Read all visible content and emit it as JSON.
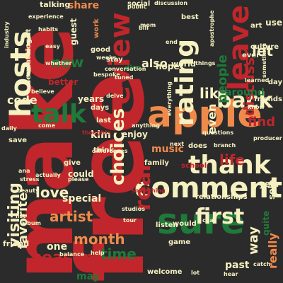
{
  "palette": {
    "background": "#2b2b2b",
    "red": "#c0262b",
    "orange": "#f08a4b",
    "cream": "#f6f1c1",
    "green": "#1f7a3a",
    "light_green": "#a8d99b",
    "salmon": "#e8604c"
  },
  "words": [
    {
      "text": "make",
      "color": "red"
    },
    {
      "text": "free",
      "color": "red"
    },
    {
      "text": "apple",
      "color": "orange"
    },
    {
      "text": "sure",
      "color": "green"
    },
    {
      "text": "comment",
      "color": "cream"
    },
    {
      "text": "thank",
      "color": "cream"
    },
    {
      "text": "hosts",
      "color": "cream"
    },
    {
      "text": "review",
      "color": "red"
    },
    {
      "text": "leave",
      "color": "red"
    },
    {
      "text": "rating",
      "color": "cream"
    },
    {
      "text": "talk",
      "color": "green"
    },
    {
      "text": "back",
      "color": "cream"
    },
    {
      "text": "first",
      "color": "cream"
    },
    {
      "text": "real",
      "color": "red"
    },
    {
      "text": "choices",
      "color": "cream"
    },
    {
      "text": "visiting",
      "color": "cream"
    },
    {
      "text": "month",
      "color": "orange"
    },
    {
      "text": "time",
      "color": "green"
    },
    {
      "text": "season",
      "color": "red"
    },
    {
      "text": "love",
      "color": "cream"
    },
    {
      "text": "like",
      "color": "cream"
    },
    {
      "text": "new",
      "color": "green"
    },
    {
      "text": "code",
      "color": "cream"
    },
    {
      "text": "artist",
      "color": "orange"
    },
    {
      "text": "favorite",
      "color": "cream"
    },
    {
      "text": "life",
      "color": "red"
    },
    {
      "text": "people",
      "color": "green"
    },
    {
      "text": "discuss",
      "color": "red"
    },
    {
      "text": "find",
      "color": "red"
    },
    {
      "text": "let",
      "color": "cream"
    },
    {
      "text": "way",
      "color": "cream"
    },
    {
      "text": "even",
      "color": "cream"
    },
    {
      "text": "also",
      "color": "cream"
    },
    {
      "text": "special",
      "color": "cream"
    },
    {
      "text": "really",
      "color": "orange"
    },
    {
      "text": "may",
      "color": "green"
    },
    {
      "text": "music",
      "color": "orange"
    },
    {
      "text": "share",
      "color": "orange"
    },
    {
      "text": "guest",
      "color": "cream"
    },
    {
      "text": "years",
      "color": "cream"
    },
    {
      "text": "kim",
      "color": "cream"
    },
    {
      "text": "enjoy",
      "color": "cream"
    },
    {
      "text": "hope",
      "color": "cream"
    },
    {
      "text": "talking",
      "color": "cream"
    },
    {
      "text": "social",
      "color": "cream"
    },
    {
      "text": "work",
      "color": "orange"
    },
    {
      "text": "one",
      "color": "cream"
    },
    {
      "text": "could",
      "color": "cream"
    },
    {
      "text": "give",
      "color": "cream"
    },
    {
      "text": "world",
      "color": "cream"
    },
    {
      "text": "family",
      "color": "cream"
    },
    {
      "text": "school",
      "color": "red"
    },
    {
      "text": "year",
      "color": "cream"
    },
    {
      "text": "solo",
      "color": "cream"
    },
    {
      "text": "friend",
      "color": "cream"
    },
    {
      "text": "welcome",
      "color": "cream"
    },
    {
      "text": "past",
      "color": "cream"
    },
    {
      "text": "quite",
      "color": "green"
    },
    {
      "text": "game",
      "color": "cream"
    },
    {
      "text": "would",
      "color": "cream"
    },
    {
      "text": "listen",
      "color": "cream"
    },
    {
      "text": "relationships",
      "color": "cream"
    },
    {
      "text": "around",
      "color": "green"
    },
    {
      "text": "friends",
      "color": "cream"
    },
    {
      "text": "culture",
      "color": "cream"
    },
    {
      "text": "ever",
      "color": "cream"
    },
    {
      "text": "day",
      "color": "cream"
    },
    {
      "text": "best",
      "color": "cream"
    },
    {
      "text": "apostrophe",
      "color": "cream"
    },
    {
      "text": "use",
      "color": "cream"
    },
    {
      "text": "art",
      "color": "cream"
    },
    {
      "text": "dermatologist",
      "color": "cream"
    },
    {
      "text": "industry",
      "color": "cream"
    },
    {
      "text": "dive",
      "color": "green"
    },
    {
      "text": "stay",
      "color": "cream"
    },
    {
      "text": "good",
      "color": "cream"
    },
    {
      "text": "better",
      "color": "red"
    },
    {
      "text": "whether",
      "color": "cream"
    },
    {
      "text": "days",
      "color": "cream"
    },
    {
      "text": "last",
      "color": "cream"
    },
    {
      "text": "come",
      "color": "cream"
    },
    {
      "text": "save",
      "color": "cream"
    },
    {
      "text": "things",
      "color": "cream"
    },
    {
      "text": "everything",
      "color": "cream"
    },
    {
      "text": "conversation",
      "color": "cream"
    },
    {
      "text": "experience",
      "color": "cream"
    },
    {
      "text": "habits",
      "color": "cream"
    },
    {
      "text": "sometimes",
      "color": "cream"
    },
    {
      "text": "learned",
      "color": "cream"
    },
    {
      "text": "know",
      "color": "cream"
    },
    {
      "text": "believe",
      "color": "cream"
    },
    {
      "text": "daily",
      "color": "cream"
    },
    {
      "text": "beauty",
      "color": "cream"
    },
    {
      "text": "stress",
      "color": "cream"
    },
    {
      "text": "please",
      "color": "cream"
    },
    {
      "text": "something",
      "color": "red"
    },
    {
      "text": "chat",
      "color": "cream"
    },
    {
      "text": "catch",
      "color": "cream"
    },
    {
      "text": "album",
      "color": "cream"
    },
    {
      "text": "balance",
      "color": "cream"
    },
    {
      "text": "studios",
      "color": "cream"
    },
    {
      "text": "questions",
      "color": "cream"
    },
    {
      "text": "thoughts",
      "color": "red"
    },
    {
      "text": "differences",
      "color": "cream"
    },
    {
      "text": "producer",
      "color": "cream"
    },
    {
      "text": "tuned",
      "color": "cream"
    },
    {
      "text": "branch",
      "color": "cream"
    },
    {
      "text": "end",
      "color": "cream"
    },
    {
      "text": "mom",
      "color": "cream"
    },
    {
      "text": "bill",
      "color": "cream"
    },
    {
      "text": "does",
      "color": "cream"
    },
    {
      "text": "anything",
      "color": "cream"
    },
    {
      "text": "list",
      "color": "cream"
    },
    {
      "text": "think",
      "color": "cream"
    },
    {
      "text": "ana",
      "color": "cream"
    },
    {
      "text": "weeks",
      "color": "cream"
    },
    {
      "text": "public",
      "color": "cream"
    },
    {
      "text": "discussion",
      "color": "cream"
    },
    {
      "text": "delve",
      "color": "cream"
    },
    {
      "text": "actually",
      "color": "cream"
    },
    {
      "text": "hear",
      "color": "cream"
    },
    {
      "text": "lot",
      "color": "cream"
    },
    {
      "text": "help",
      "color": "cream"
    },
    {
      "text": "bespoke",
      "color": "cream"
    },
    {
      "text": "next",
      "color": "cream"
    },
    {
      "text": "tour",
      "color": "cream"
    },
    {
      "text": "easy",
      "color": "cream"
    }
  ]
}
